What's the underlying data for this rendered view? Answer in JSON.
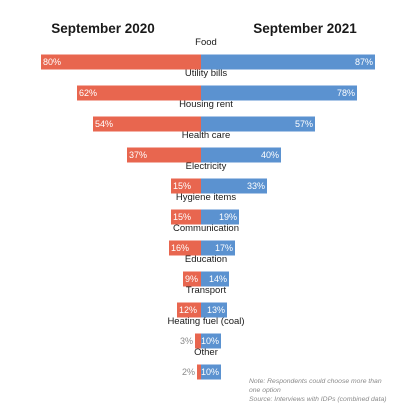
{
  "colors": {
    "left": "#e8664f",
    "right": "#5b92d0",
    "text": "#1a1a1a",
    "muted": "#8a8a8a"
  },
  "chart_data": {
    "type": "bar",
    "orientation": "butterfly",
    "series": [
      {
        "name": "September 2020",
        "values": [
          80,
          62,
          54,
          37,
          15,
          15,
          16,
          9,
          12,
          3,
          2
        ]
      },
      {
        "name": "September 2021",
        "values": [
          87,
          78,
          57,
          40,
          33,
          19,
          17,
          14,
          13,
          10,
          10
        ]
      }
    ],
    "categories": [
      "Food",
      "Utility bills",
      "Housing rent",
      "Health care",
      "Electricity",
      "Hygiene items",
      "Communication",
      "Education",
      "Transport",
      "Heating fuel (coal)",
      "Other"
    ],
    "value_labels": {
      "left": [
        "80%",
        "62%",
        "54%",
        "37%",
        "15%",
        "15%",
        "16%",
        "9%",
        "12%",
        "3%",
        "2%"
      ],
      "right": [
        "87%",
        "78%",
        "57%",
        "40%",
        "33%",
        "19%",
        "17%",
        "14%",
        "13%",
        "10%",
        "10%"
      ]
    },
    "notes": [
      "Note: Respondents could choose more than",
      "one option",
      "Source: Interviews with IDPs (combined data)"
    ]
  }
}
